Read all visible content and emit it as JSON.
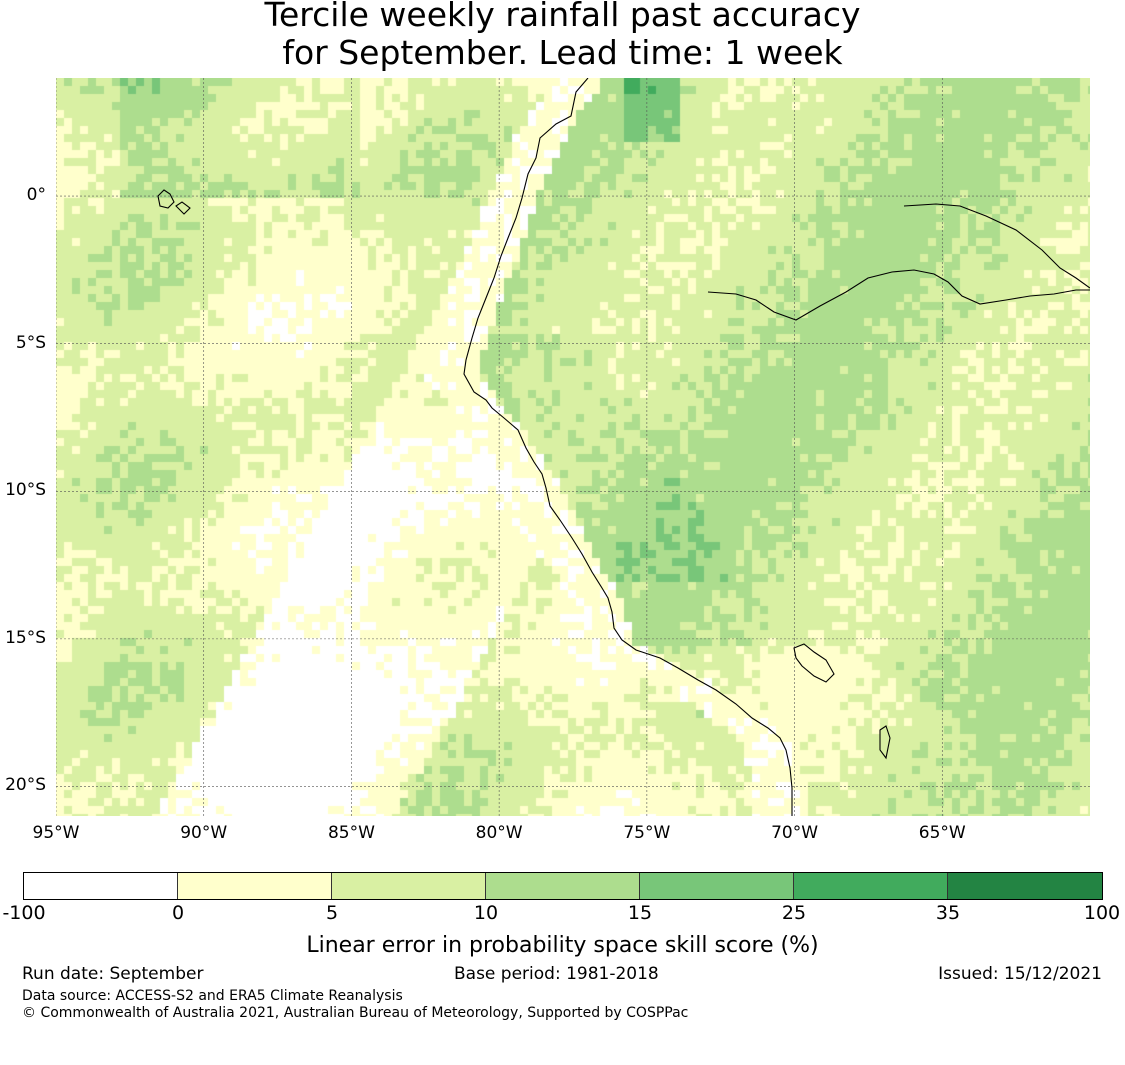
{
  "title": {
    "line1": "Tercile weekly rainfall past accuracy",
    "line2": "for September. Lead time: 1 week"
  },
  "map": {
    "lat_labels": [
      "0°",
      "5°S",
      "10°S",
      "15°S",
      "20°S"
    ],
    "lon_labels": [
      "95°W",
      "90°W",
      "85°W",
      "80°W",
      "75°W",
      "70°W",
      "65°W"
    ],
    "extent": {
      "lon_min": -95,
      "lon_max": -60,
      "lat_min": -21,
      "lat_max": 4
    }
  },
  "colorbar": {
    "ticks": [
      "-100",
      "0",
      "5",
      "10",
      "15",
      "25",
      "35",
      "100"
    ],
    "colors": [
      "#ffffff",
      "#ffffcc",
      "#d9f0a3",
      "#addd8e",
      "#78c679",
      "#41ab5d",
      "#238443"
    ],
    "label": "Linear error in probability space skill score (%)"
  },
  "footer": {
    "run_date": "Run date: September",
    "base_period": "Base period: 1981-2018",
    "issued": "Issued: 15/12/2021",
    "data_source": "Data source: ACCESS-S2 and ERA5 Climate Reanalysis",
    "copyright": "© Commonwealth of Australia 2021, Australian Bureau of Meteorology, Supported by COSPPac"
  }
}
